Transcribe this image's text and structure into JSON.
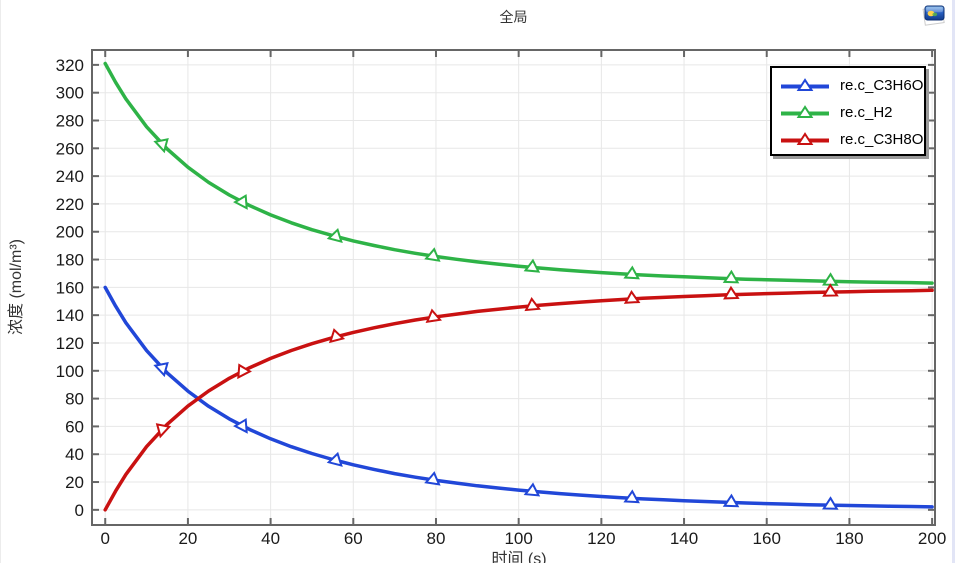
{
  "window": {
    "title": "全局",
    "snapshot_icon": "image-snapshot-icon"
  },
  "styles": {
    "frame_color": "#666666",
    "grid_color": "#e7e7e7",
    "tick_label_color": "#1a1a1a",
    "legend_border_color": "#000000",
    "legend_shadow_color": "#9a9a9a"
  },
  "chart_data": {
    "type": "line",
    "title": "全局",
    "xlabel": "时间 (s)",
    "ylabel": "浓度 (mol/m³)",
    "xlim": [
      -3.2,
      200.7
    ],
    "ylim": [
      -10.9,
      330.7
    ],
    "xticks": [
      0,
      20,
      40,
      60,
      80,
      100,
      120,
      140,
      160,
      180,
      200
    ],
    "yticks": [
      0,
      20,
      40,
      60,
      80,
      100,
      120,
      140,
      160,
      180,
      200,
      220,
      240,
      260,
      280,
      300,
      320
    ],
    "grid": true,
    "legend_position": "top-right",
    "x": [
      0,
      2.5,
      5,
      10,
      15,
      20,
      25,
      30,
      35,
      40,
      45,
      50,
      55,
      60,
      65,
      70,
      75,
      80,
      85,
      90,
      95,
      100,
      105,
      110,
      115,
      120,
      125,
      130,
      135,
      140,
      145,
      150,
      155,
      160,
      165,
      170,
      175,
      180,
      185,
      190,
      195,
      200
    ],
    "marker_x": [
      13.8,
      33.2,
      55.8,
      79.3,
      103.3,
      127.4,
      151.4,
      175.4
    ],
    "series": [
      {
        "name": "re.c_C3H6O",
        "color": "#2147d8",
        "values": [
          160,
          146.5,
          134.5,
          114.5,
          98.5,
          85.4,
          74.5,
          65.4,
          57.7,
          51.1,
          45.4,
          40.5,
          36.2,
          32.4,
          29.1,
          26.1,
          23.5,
          21.2,
          19.2,
          17.3,
          15.7,
          14.2,
          12.9,
          11.7,
          10.6,
          9.6,
          8.7,
          7.9,
          7.2,
          6.6,
          6.0,
          5.4,
          4.9,
          4.5,
          4.1,
          3.7,
          3.4,
          3.1,
          2.8,
          2.6,
          2.4,
          2.1
        ],
        "marker_values": [
          102.0,
          60.4,
          35.5,
          21.5,
          13.3,
          8.3,
          5.3,
          3.4
        ]
      },
      {
        "name": "re.c_H2",
        "color": "#2eb347",
        "values": [
          321,
          307.5,
          295.5,
          275.5,
          259.5,
          246.4,
          235.5,
          226.4,
          218.7,
          212.1,
          206.4,
          201.5,
          197.2,
          193.4,
          190.1,
          187.1,
          184.5,
          182.2,
          180.2,
          178.3,
          176.7,
          175.2,
          173.9,
          172.7,
          171.6,
          170.6,
          169.7,
          168.9,
          168.2,
          167.6,
          167.0,
          166.4,
          165.9,
          165.5,
          165.1,
          164.7,
          164.4,
          164.1,
          163.8,
          163.6,
          163.4,
          163.1
        ],
        "marker_values": [
          263.0,
          221.4,
          196.5,
          182.5,
          174.3,
          169.3,
          166.3,
          164.4
        ]
      },
      {
        "name": "re.c_C3H8O",
        "color": "#c91111",
        "values": [
          0,
          13.5,
          25.5,
          45.5,
          61.5,
          74.6,
          85.5,
          94.6,
          102.3,
          108.9,
          114.6,
          119.5,
          123.8,
          127.6,
          130.9,
          133.9,
          136.5,
          138.8,
          140.8,
          142.7,
          144.3,
          145.8,
          147.1,
          148.3,
          149.4,
          150.4,
          151.3,
          152.1,
          152.8,
          153.4,
          154.0,
          154.6,
          155.1,
          155.5,
          155.9,
          156.3,
          156.6,
          156.9,
          157.2,
          157.4,
          157.6,
          157.9
        ],
        "marker_values": [
          58.0,
          99.6,
          124.5,
          138.5,
          146.7,
          151.7,
          154.7,
          156.6
        ]
      }
    ]
  }
}
